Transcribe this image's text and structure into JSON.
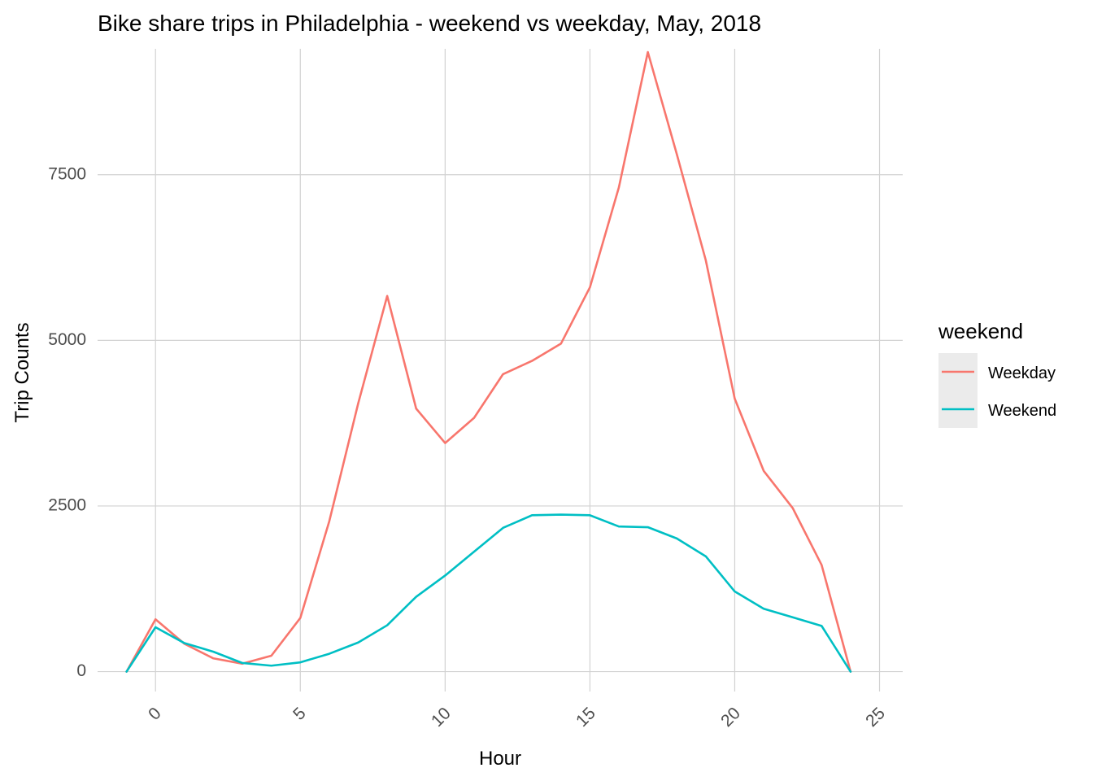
{
  "chart_data": {
    "type": "line",
    "title": "Bike share trips in Philadelphia - weekend vs weekday, May, 2018",
    "xlabel": "Hour",
    "ylabel": "Trip Counts",
    "xlim": [
      -2,
      25.8
    ],
    "ylim": [
      -300,
      9400
    ],
    "x_ticks": [
      0,
      5,
      10,
      15,
      20,
      25
    ],
    "x_tick_labels": [
      "0",
      "5",
      "10",
      "15",
      "20",
      "25"
    ],
    "y_ticks": [
      0,
      2500,
      5000,
      7500
    ],
    "y_tick_labels": [
      "0",
      "2500",
      "5000",
      "7500"
    ],
    "grid": true,
    "legend": {
      "title": "weekend",
      "position": "right"
    },
    "series": [
      {
        "name": "Weekday",
        "color": "#F8766D",
        "x": [
          -1,
          0,
          1,
          2,
          3,
          4,
          5,
          6,
          7,
          8,
          9,
          10,
          11,
          12,
          13,
          14,
          15,
          16,
          17,
          18,
          19,
          20,
          21,
          22,
          23,
          24
        ],
        "y": [
          0,
          790,
          420,
          200,
          120,
          240,
          810,
          2270,
          4050,
          5670,
          3970,
          3450,
          3830,
          4490,
          4690,
          4950,
          5800,
          7310,
          9350,
          7810,
          6210,
          4120,
          3030,
          2470,
          1610,
          0
        ]
      },
      {
        "name": "Weekend",
        "color": "#00BFC4",
        "x": [
          -1,
          0,
          1,
          2,
          3,
          4,
          5,
          6,
          7,
          8,
          9,
          10,
          11,
          12,
          13,
          14,
          15,
          16,
          17,
          18,
          19,
          20,
          21,
          22,
          23,
          24
        ],
        "y": [
          0,
          670,
          430,
          300,
          130,
          90,
          140,
          270,
          440,
          700,
          1130,
          1450,
          1810,
          2170,
          2360,
          2370,
          2360,
          2190,
          2180,
          2010,
          1740,
          1210,
          950,
          820,
          690,
          0
        ]
      }
    ]
  }
}
